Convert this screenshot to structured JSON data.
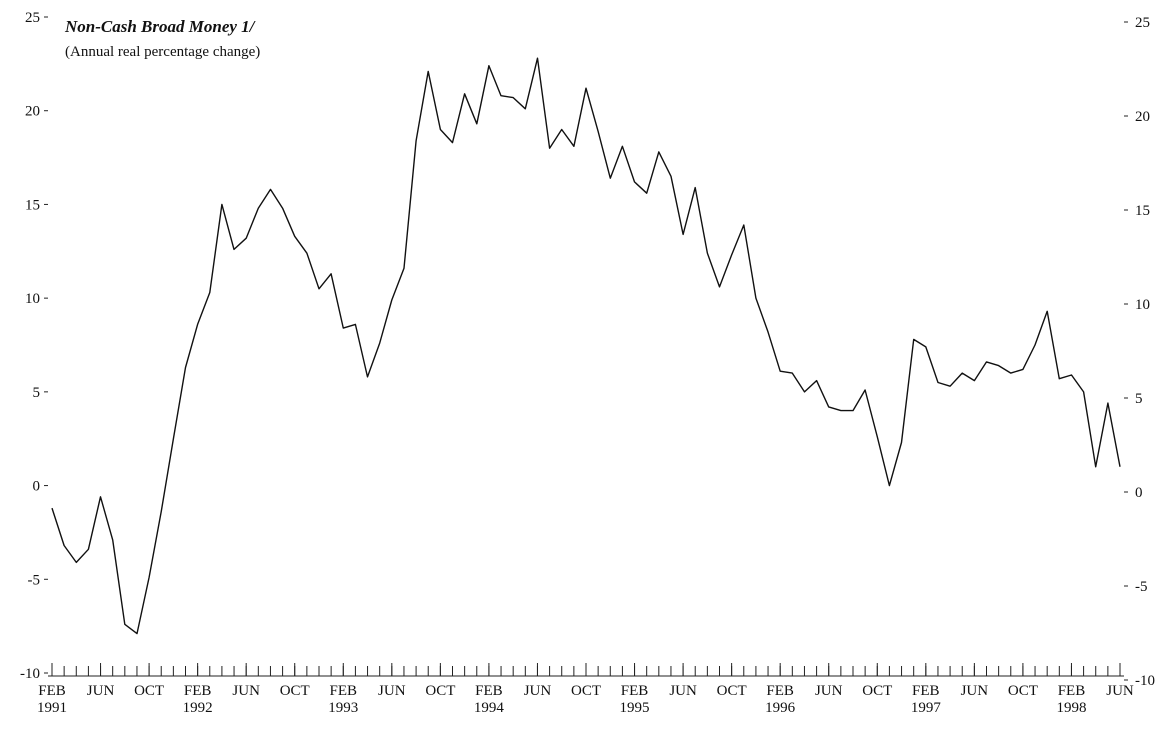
{
  "chart_data": {
    "type": "line",
    "title": "Non-Cash Broad Money  1/",
    "subtitle": "(Annual real percentage change)",
    "x": [
      "1991-02",
      "1991-03",
      "1991-04",
      "1991-05",
      "1991-06",
      "1991-07",
      "1991-08",
      "1991-09",
      "1991-10",
      "1991-11",
      "1991-12",
      "1992-01",
      "1992-02",
      "1992-03",
      "1992-04",
      "1992-05",
      "1992-06",
      "1992-07",
      "1992-08",
      "1992-09",
      "1992-10",
      "1992-11",
      "1992-12",
      "1993-01",
      "1993-02",
      "1993-03",
      "1993-04",
      "1993-05",
      "1993-06",
      "1993-07",
      "1993-08",
      "1993-09",
      "1993-10",
      "1993-11",
      "1993-12",
      "1994-01",
      "1994-02",
      "1994-03",
      "1994-04",
      "1994-05",
      "1994-06",
      "1994-07",
      "1994-08",
      "1994-09",
      "1994-10",
      "1994-11",
      "1994-12",
      "1995-01",
      "1995-02",
      "1995-03",
      "1995-04",
      "1995-05",
      "1995-06",
      "1995-07",
      "1995-08",
      "1995-09",
      "1995-10",
      "1995-11",
      "1995-12",
      "1996-01",
      "1996-02",
      "1996-03",
      "1996-04",
      "1996-05",
      "1996-06",
      "1996-07",
      "1996-08",
      "1996-09",
      "1996-10",
      "1996-11",
      "1996-12",
      "1997-01",
      "1997-02",
      "1997-03",
      "1997-04",
      "1997-05",
      "1997-06",
      "1997-07",
      "1997-08",
      "1997-09",
      "1997-10",
      "1997-11",
      "1997-12",
      "1998-01",
      "1998-02",
      "1998-03",
      "1998-04",
      "1998-05",
      "1998-06"
    ],
    "series": [
      {
        "color": "#111111",
        "values": [
          -1.2,
          -3.2,
          -4.1,
          -3.4,
          -0.6,
          -2.9,
          -7.4,
          -7.9,
          -4.9,
          -1.4,
          2.5,
          6.3,
          8.6,
          10.3,
          15.0,
          12.6,
          13.2,
          14.8,
          15.8,
          14.8,
          13.3,
          12.4,
          10.5,
          11.3,
          8.4,
          8.6,
          5.8,
          7.6,
          9.9,
          11.6,
          18.4,
          22.1,
          19.0,
          18.3,
          20.9,
          19.3,
          22.4,
          20.8,
          20.7,
          20.1,
          22.8,
          18.0,
          19.0,
          18.1,
          21.2,
          18.9,
          16.4,
          18.1,
          16.2,
          15.6,
          17.8,
          16.5,
          13.4,
          15.9,
          12.4,
          10.6,
          12.3,
          13.9,
          10.0,
          8.2,
          6.1,
          6.0,
          5.0,
          5.6,
          4.2,
          4.0,
          4.0,
          5.1,
          2.6,
          0.0,
          2.3,
          7.8,
          7.4,
          5.5,
          5.3,
          6.0,
          5.6,
          6.6,
          6.4,
          6.0,
          6.2,
          7.5,
          9.3,
          5.7,
          5.9,
          5.0,
          1.0,
          4.4,
          1.0
        ]
      }
    ],
    "xticks": [
      {
        "value": "1991-02",
        "label": "FEB 1991"
      },
      {
        "value": "1991-06",
        "label": "JUN"
      },
      {
        "value": "1991-10",
        "label": "OCT"
      },
      {
        "value": "1992-02",
        "label": "FEB 1992"
      },
      {
        "value": "1992-06",
        "label": "JUN"
      },
      {
        "value": "1992-10",
        "label": "OCT"
      },
      {
        "value": "1993-02",
        "label": "FEB 1993"
      },
      {
        "value": "1993-06",
        "label": "JUN"
      },
      {
        "value": "1993-10",
        "label": "OCT"
      },
      {
        "value": "1994-02",
        "label": "FEB 1994"
      },
      {
        "value": "1994-06",
        "label": "JUN"
      },
      {
        "value": "1994-10",
        "label": "OCT"
      },
      {
        "value": "1995-02",
        "label": "FEB 1995"
      },
      {
        "value": "1995-06",
        "label": "JUN"
      },
      {
        "value": "1995-10",
        "label": "OCT"
      },
      {
        "value": "1996-02",
        "label": "FEB 1996"
      },
      {
        "value": "1996-06",
        "label": "JUN"
      },
      {
        "value": "1996-10",
        "label": "OCT"
      },
      {
        "value": "1997-02",
        "label": "FEB 1997"
      },
      {
        "value": "1997-06",
        "label": "JUN"
      },
      {
        "value": "1997-10",
        "label": "OCT"
      },
      {
        "value": "1998-02",
        "label": "FEB 1998"
      },
      {
        "value": "1998-06",
        "label": "JUN"
      }
    ],
    "ylim": [
      -10,
      25
    ],
    "yticks": [
      -10,
      -5,
      0,
      5,
      10,
      15,
      20,
      25
    ],
    "y2lim": [
      -10,
      25
    ],
    "y2ticks": [
      -10,
      -5,
      0,
      5,
      10,
      15,
      20,
      25
    ]
  }
}
